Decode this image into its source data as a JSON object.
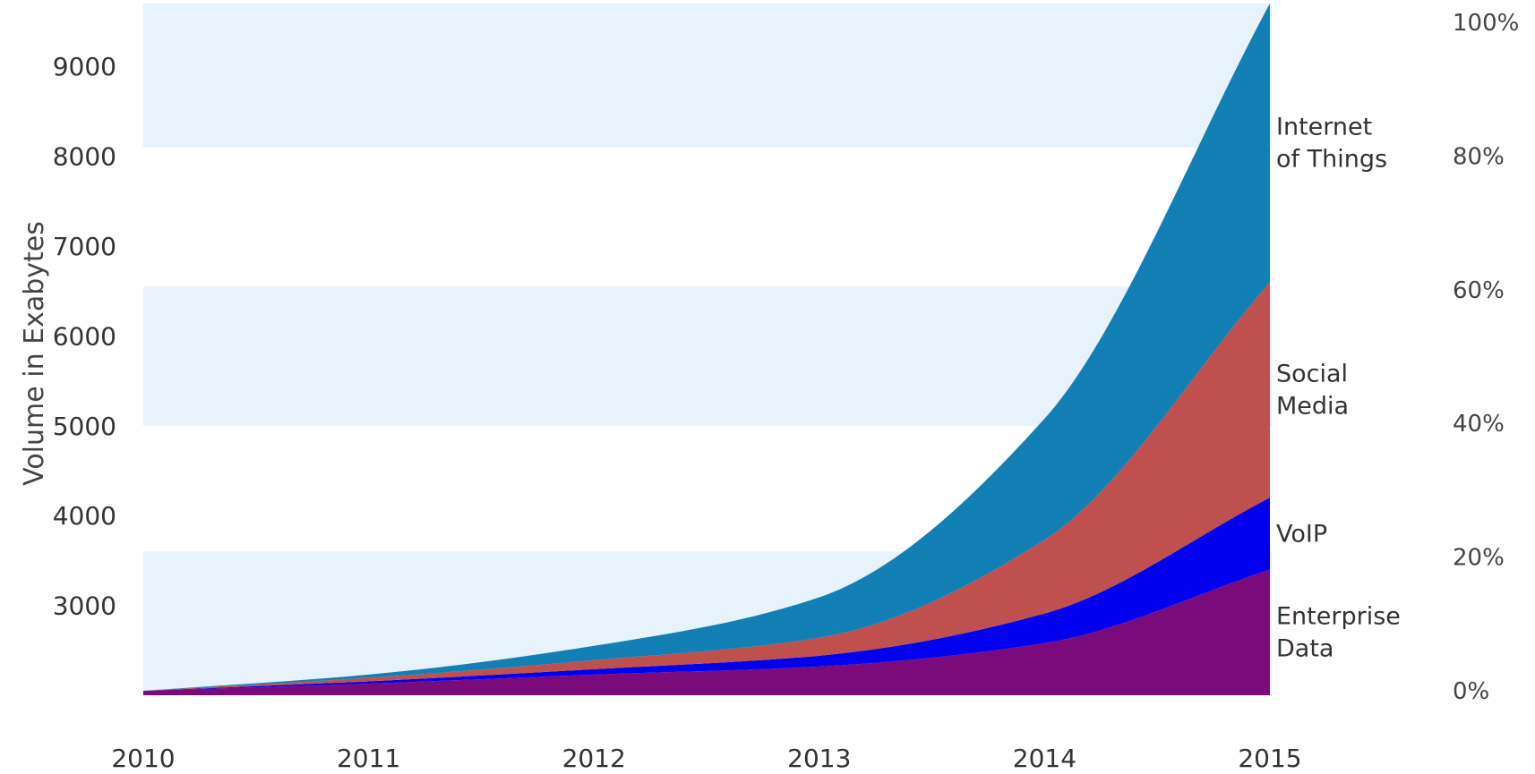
{
  "chart_data": {
    "type": "area",
    "stacked": true,
    "ylabel": "Volume in Exabytes",
    "xlabel": "",
    "x": [
      "2010",
      "2011",
      "2012",
      "2013",
      "2014",
      "2015"
    ],
    "yticks": [
      "3000",
      "4000",
      "5000",
      "6000",
      "7000",
      "8000",
      "9000"
    ],
    "ylim": [
      2000,
      9700
    ],
    "y2ticks": [
      "0%",
      "20%",
      "40%",
      "60%",
      "80%",
      "100%"
    ],
    "grid": "alternating horizontal bands",
    "series": [
      {
        "name": "Enterprise Data",
        "label_lines": [
          "Enterprise",
          "Data"
        ],
        "color": "#7b0a7b",
        "values": [
          2050,
          2130,
          2230,
          2320,
          2580,
          3400
        ]
      },
      {
        "name": "VoIP",
        "label_lines": [
          "VoIP"
        ],
        "color": "#0000ee",
        "values": [
          0,
          25,
          60,
          120,
          330,
          800
        ]
      },
      {
        "name": "Social Media",
        "label_lines": [
          "Social",
          "Media"
        ],
        "color": "#c0504d",
        "values": [
          0,
          40,
          100,
          200,
          820,
          2400
        ]
      },
      {
        "name": "Internet of Things",
        "label_lines": [
          "Internet",
          "of Things"
        ],
        "color": "#1380b5",
        "values": [
          0,
          35,
          160,
          450,
          1350,
          3100
        ]
      }
    ]
  }
}
